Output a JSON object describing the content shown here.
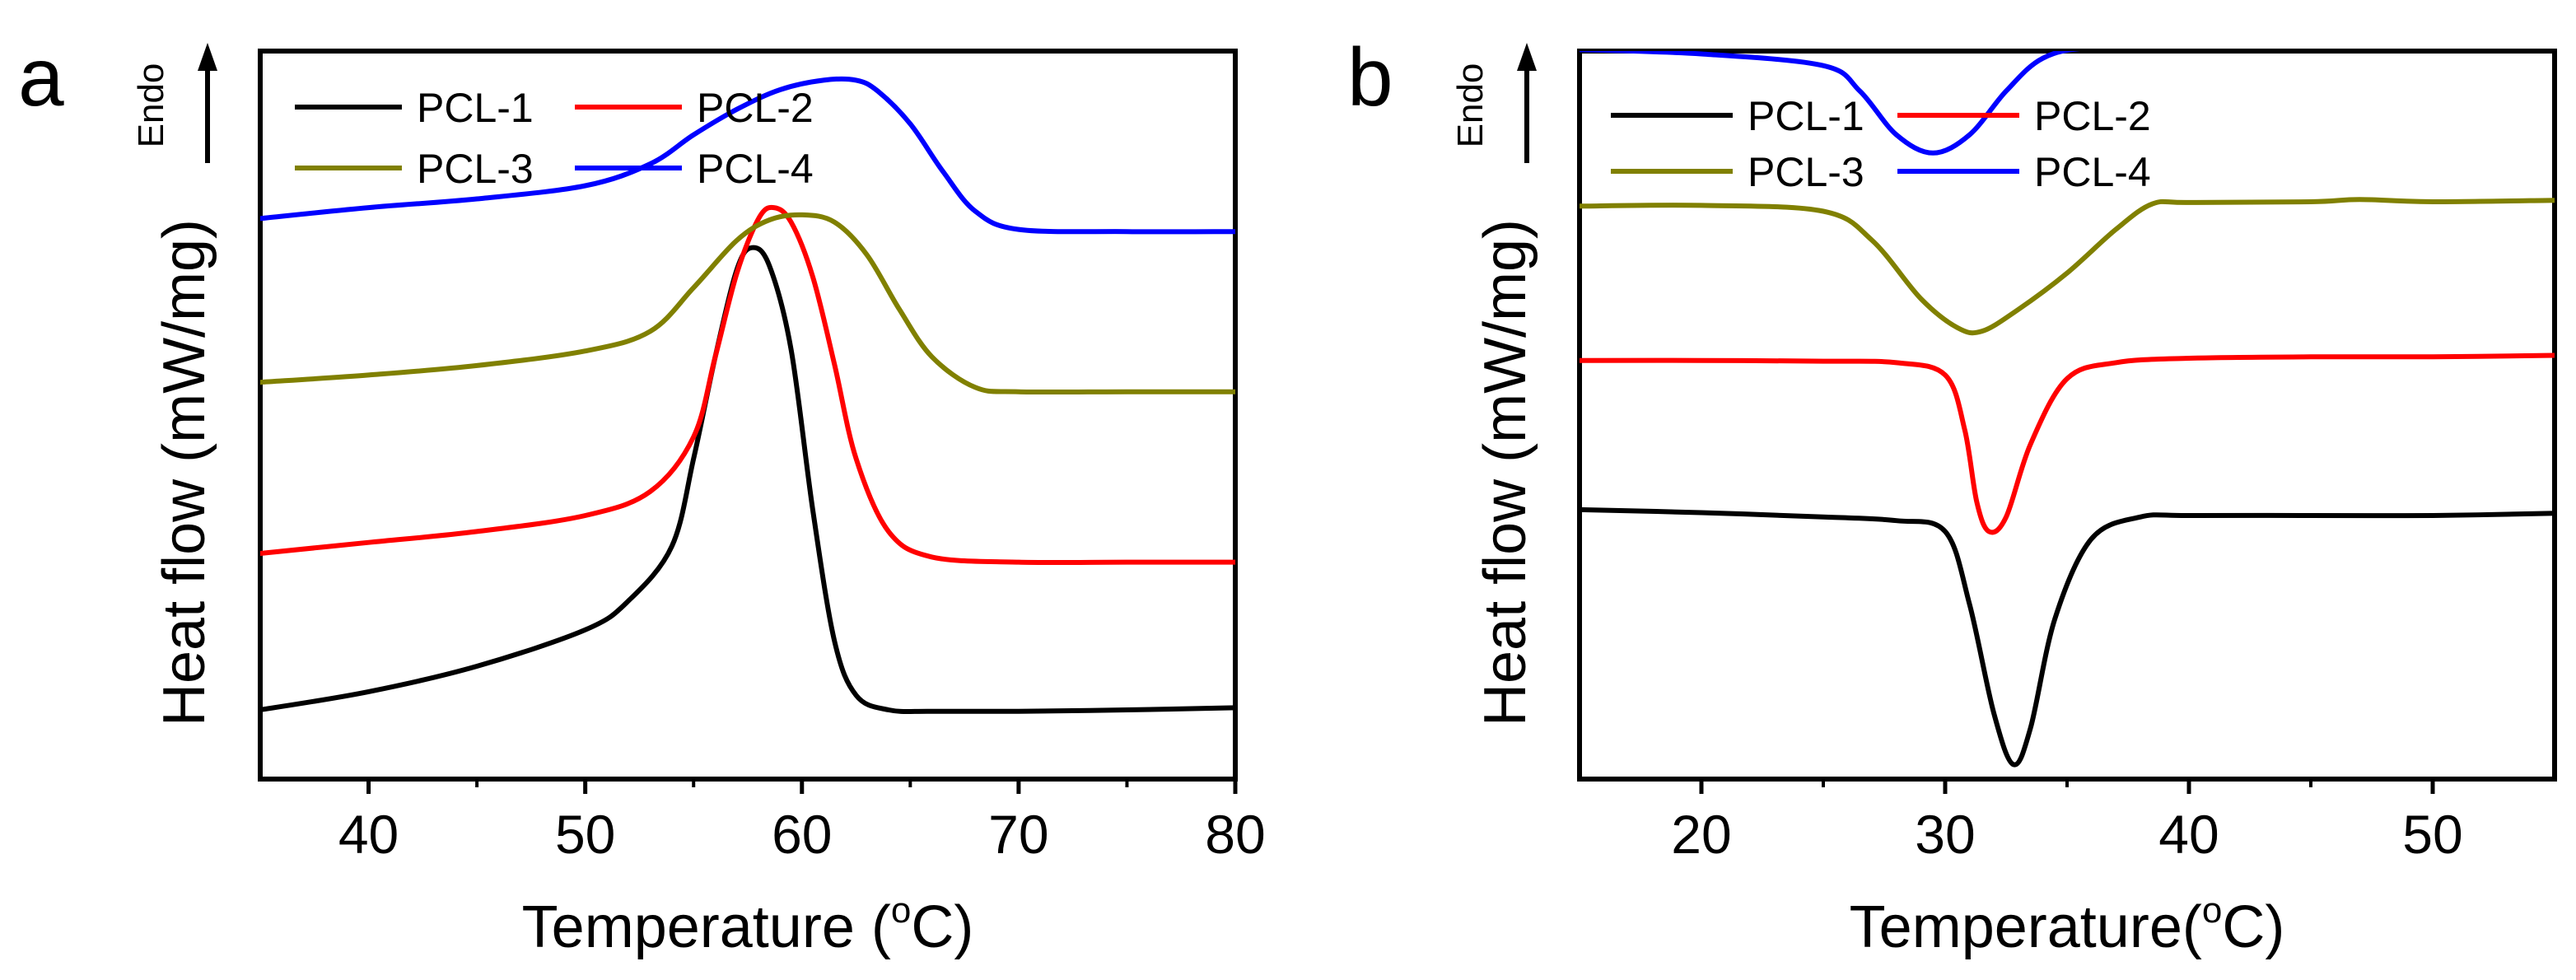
{
  "chart_data": [
    {
      "type": "line",
      "panel_label": "a",
      "title": "",
      "xlabel_prefix": "Temperature (",
      "xlabel_sup": "o",
      "xlabel_suffix": "C)",
      "ylabel": "Heat flow (mW/mg)",
      "endo_label": "Endo",
      "xlim": [
        35,
        80
      ],
      "ylim": [
        0,
        10
      ],
      "y_ticks_labeled": false,
      "x_ticks": [
        40,
        50,
        60,
        70,
        80
      ],
      "x_tick_labels": [
        "40",
        "50",
        "60",
        "70",
        "80"
      ],
      "legend_position": "top-left",
      "series": [
        {
          "name": "PCL-1",
          "color": "#000000",
          "x": [
            35,
            40,
            45,
            50,
            52,
            54,
            55,
            56,
            57,
            57.7,
            58.5,
            59.5,
            60.5,
            61.5,
            62.5,
            64,
            66,
            70,
            75,
            80
          ],
          "y": [
            0.95,
            1.2,
            1.55,
            2.05,
            2.45,
            3.2,
            4.4,
            5.8,
            7.0,
            7.3,
            7.05,
            5.9,
            3.7,
            1.9,
            1.15,
            0.95,
            0.93,
            0.93,
            0.95,
            0.98
          ]
        },
        {
          "name": "PCL-2",
          "color": "#ff0000",
          "x": [
            35,
            40,
            45,
            50,
            53,
            55,
            56,
            57,
            58,
            58.7,
            59.5,
            60.5,
            61.5,
            62.5,
            64,
            66,
            70,
            75,
            80
          ],
          "y": [
            3.1,
            3.25,
            3.4,
            3.62,
            3.95,
            4.7,
            5.8,
            6.95,
            7.7,
            7.85,
            7.65,
            6.9,
            5.7,
            4.4,
            3.4,
            3.05,
            2.98,
            2.98,
            2.98
          ]
        },
        {
          "name": "PCL-3",
          "color": "#808000",
          "x": [
            35,
            40,
            45,
            50,
            53,
            55,
            57,
            58.5,
            60,
            61.5,
            63,
            64.5,
            66,
            68,
            70,
            75,
            80
          ],
          "y": [
            5.45,
            5.55,
            5.68,
            5.88,
            6.15,
            6.75,
            7.4,
            7.68,
            7.75,
            7.65,
            7.2,
            6.45,
            5.8,
            5.38,
            5.32,
            5.32,
            5.32
          ]
        },
        {
          "name": "PCL-4",
          "color": "#0000ff",
          "x": [
            35,
            40,
            45,
            50,
            53,
            55,
            57,
            59,
            61,
            62.5,
            63.5,
            65,
            66.5,
            68,
            70,
            75,
            80
          ],
          "y": [
            7.7,
            7.85,
            7.97,
            8.15,
            8.45,
            8.85,
            9.2,
            9.47,
            9.6,
            9.6,
            9.45,
            9.0,
            8.35,
            7.8,
            7.55,
            7.52,
            7.52
          ]
        }
      ]
    },
    {
      "type": "line",
      "panel_label": "b",
      "title": "",
      "xlabel_prefix": "Temperature(",
      "xlabel_sup": "o",
      "xlabel_suffix": "C)",
      "ylabel": "Heat flow (mW/mg)",
      "endo_label": "Endo",
      "xlim": [
        15,
        55
      ],
      "ylim": [
        0,
        10
      ],
      "y_ticks_labeled": false,
      "x_ticks": [
        20,
        30,
        40,
        50
      ],
      "x_tick_labels": [
        "20",
        "30",
        "40",
        "50"
      ],
      "legend_position": "top-left",
      "series": [
        {
          "name": "PCL-1",
          "color": "#000000",
          "x": [
            15,
            20,
            25,
            28,
            30,
            31,
            32,
            32.8,
            33.5,
            34.5,
            36,
            38,
            40,
            45,
            50,
            55
          ],
          "y": [
            3.7,
            3.66,
            3.6,
            3.55,
            3.4,
            2.4,
            0.9,
            0.2,
            0.7,
            2.2,
            3.3,
            3.6,
            3.62,
            3.62,
            3.62,
            3.65
          ]
        },
        {
          "name": "PCL-2",
          "color": "#ff0000",
          "x": [
            15,
            20,
            25,
            28,
            30,
            30.8,
            31.3,
            31.8,
            32.5,
            33.5,
            35,
            37,
            40,
            45,
            50,
            55
          ],
          "y": [
            5.75,
            5.75,
            5.74,
            5.72,
            5.55,
            4.8,
            3.8,
            3.4,
            3.6,
            4.6,
            5.5,
            5.72,
            5.78,
            5.8,
            5.8,
            5.82
          ]
        },
        {
          "name": "PCL-3",
          "color": "#808000",
          "x": [
            15,
            20,
            25,
            27,
            29,
            30.5,
            31.5,
            33,
            35,
            37,
            38.5,
            40,
            45,
            47,
            50,
            55
          ],
          "y": [
            7.87,
            7.88,
            7.8,
            7.4,
            6.6,
            6.2,
            6.15,
            6.45,
            6.95,
            7.55,
            7.9,
            7.92,
            7.93,
            7.96,
            7.93,
            7.95
          ]
        },
        {
          "name": "PCL-4",
          "color": "#0000ff",
          "x": [
            15,
            20,
            25,
            26.5,
            28,
            29.5,
            31,
            32.5,
            34,
            36,
            40,
            45,
            50,
            55
          ],
          "y": [
            10.02,
            9.96,
            9.8,
            9.45,
            8.85,
            8.6,
            8.85,
            9.45,
            9.9,
            10.05,
            10.08,
            10.1,
            10.1,
            10.12
          ]
        }
      ]
    }
  ]
}
